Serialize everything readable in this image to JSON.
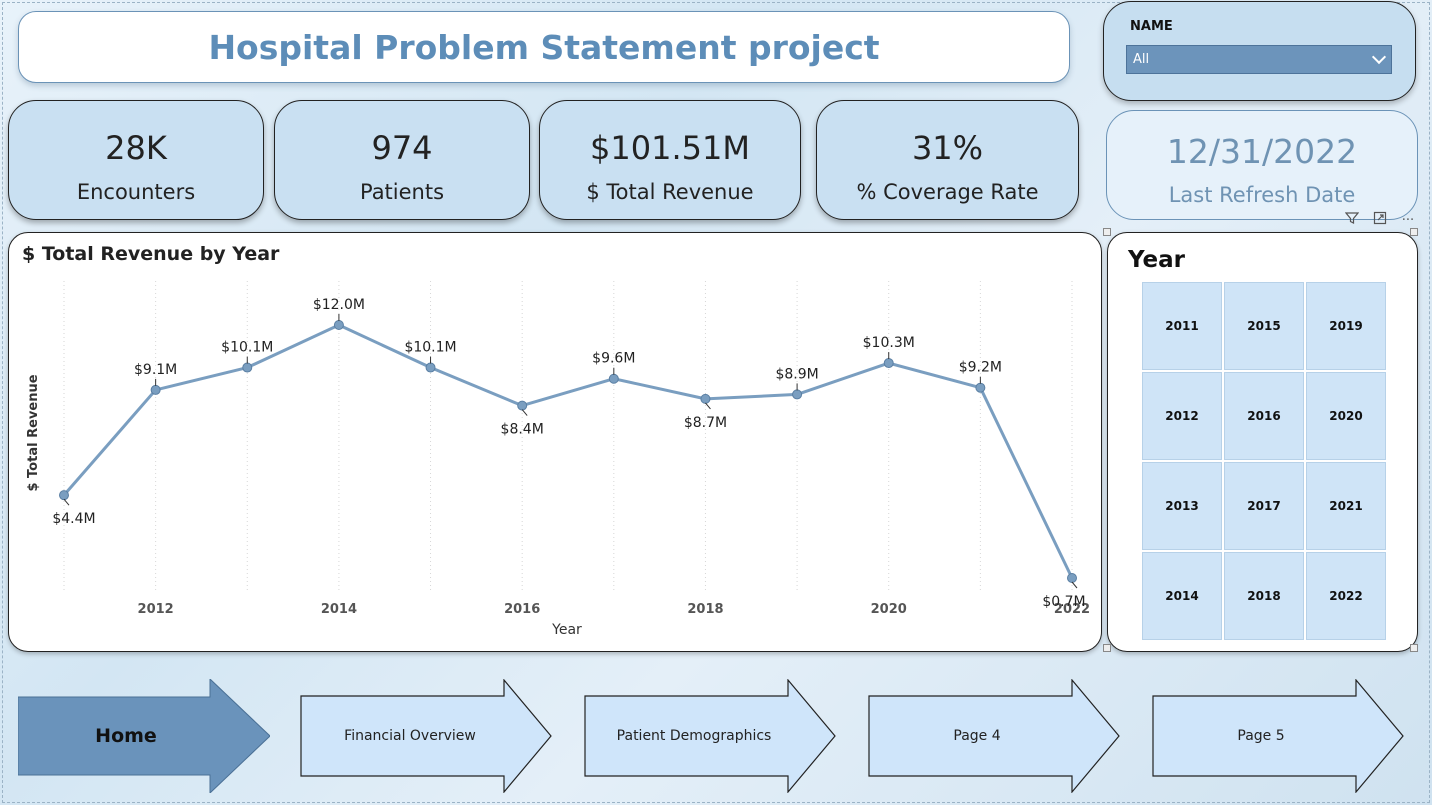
{
  "title": "Hospital Problem Statement project",
  "name_slicer": {
    "label": "NAME",
    "value": "All"
  },
  "kpis": [
    {
      "value": "28K",
      "label": "Encounters"
    },
    {
      "value": "974",
      "label": "Patients"
    },
    {
      "value": "$101.51M",
      "label": "$ Total Revenue"
    },
    {
      "value": "31%",
      "label": "% Coverage Rate"
    }
  ],
  "refresh": {
    "value": "12/31/2022",
    "label": "Last Refresh Date"
  },
  "visual_tools": {
    "filter_icon": "filter-icon",
    "focus_icon": "focus-mode-icon",
    "more_icon": "more-options-icon",
    "more_label": "···"
  },
  "chart_data": {
    "type": "line",
    "title": "$ Total Revenue by Year",
    "xlabel": "Year",
    "ylabel": "$ Total Revenue",
    "x": [
      2011,
      2012,
      2013,
      2014,
      2015,
      2016,
      2017,
      2018,
      2019,
      2020,
      2021,
      2022
    ],
    "values": [
      4.4,
      9.1,
      10.1,
      12.0,
      10.1,
      8.4,
      9.6,
      8.7,
      8.9,
      10.3,
      9.2,
      0.7
    ],
    "data_labels": [
      "$4.4M",
      "$9.1M",
      "$10.1M",
      "$12.0M",
      "$10.1M",
      "$8.4M",
      "$9.6M",
      "$8.7M",
      "$8.9M",
      "$10.3M",
      "$9.2M",
      "$0.7M"
    ],
    "x_ticks": [
      "2012",
      "2014",
      "2016",
      "2018",
      "2020",
      "2022"
    ],
    "color": "#7a9ec0"
  },
  "year_slicer": {
    "title": "Year",
    "items": [
      "2011",
      "2015",
      "2019",
      "2012",
      "2016",
      "2020",
      "2013",
      "2017",
      "2021",
      "2014",
      "2018",
      "2022"
    ]
  },
  "nav": [
    {
      "label": "Home",
      "active": true
    },
    {
      "label": "Financial Overview",
      "active": false
    },
    {
      "label": "Patient Demographics",
      "active": false
    },
    {
      "label": "Page 4",
      "active": false
    },
    {
      "label": "Page 5",
      "active": false
    }
  ],
  "colors": {
    "accent": "#5d8db8",
    "card": "#c9e0f2",
    "nav_active": "#6a93bb",
    "nav_inactive": "#cfe5fa"
  }
}
